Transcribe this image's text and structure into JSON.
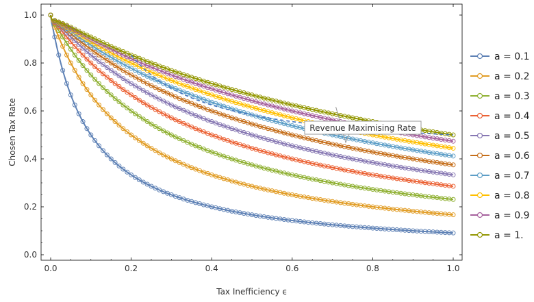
{
  "chart_data": {
    "type": "line",
    "xlabel": "Tax Inefficiency ϵ",
    "ylabel": "Chosen Tax Rate",
    "xlim": [
      0,
      1
    ],
    "ylim": [
      0,
      1
    ],
    "x_ticks": [
      "0.0",
      "0.2",
      "0.4",
      "0.6",
      "0.8",
      "1.0"
    ],
    "y_ticks": [
      "0.0",
      "0.2",
      "0.4",
      "0.6",
      "0.8",
      "1.0"
    ],
    "legend_position": "right",
    "annotation": "Revenue Maximising Rate",
    "series_colors": [
      "#5e81b5",
      "#e19c24",
      "#8fb032",
      "#eb6235",
      "#8778b3",
      "#c56e1a",
      "#5d9ec7",
      "#ffbf00",
      "#a5609d",
      "#929600"
    ],
    "series": [
      {
        "name": "a = 0.1",
        "a": 0.1
      },
      {
        "name": "a = 0.2",
        "a": 0.2
      },
      {
        "name": "a = 0.3",
        "a": 0.3
      },
      {
        "name": "a = 0.4",
        "a": 0.4
      },
      {
        "name": "a = 0.5",
        "a": 0.5
      },
      {
        "name": "a = 0.6",
        "a": 0.6
      },
      {
        "name": "a = 0.7",
        "a": 0.7
      },
      {
        "name": "a = 0.8",
        "a": 0.8
      },
      {
        "name": "a = 0.9",
        "a": 0.9
      },
      {
        "name": "a = 1.",
        "a": 1.0
      }
    ],
    "reference_line": {
      "name": "Revenue Maximising Rate",
      "style": "dashed",
      "color": "#4a78c0",
      "x_start": 0.2,
      "y_at_x_start": 0.833,
      "y_at_x_end": 0.5
    }
  }
}
